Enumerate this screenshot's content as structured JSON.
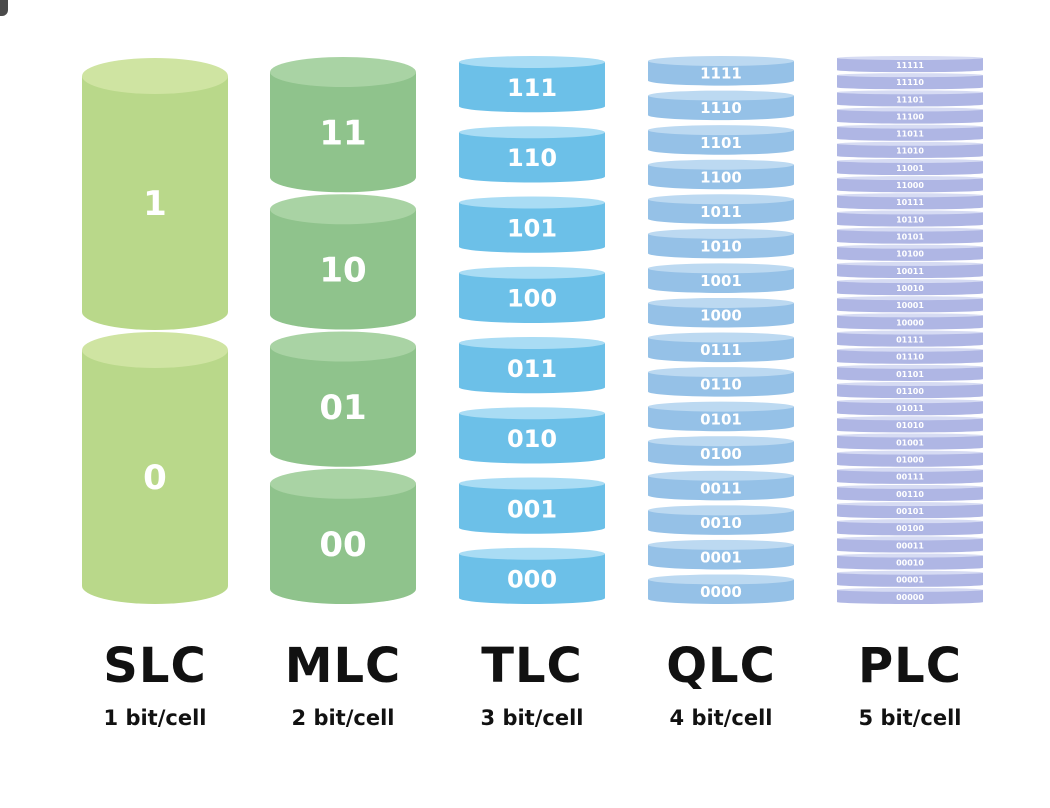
{
  "columns": [
    {
      "id": "slc",
      "type": "SLC",
      "bits": "1 bit/cell",
      "states": [
        "1",
        "0"
      ],
      "colors": {
        "top": "#cfe4a2",
        "body": "#b9d88a",
        "text": "#ffffff"
      }
    },
    {
      "id": "mlc",
      "type": "MLC",
      "bits": "2 bit/cell",
      "states": [
        "11",
        "10",
        "01",
        "00"
      ],
      "colors": {
        "top": "#a9d3a4",
        "body": "#8fc38c",
        "text": "#ffffff"
      }
    },
    {
      "id": "tlc",
      "type": "TLC",
      "bits": "3 bit/cell",
      "states": [
        "111",
        "110",
        "101",
        "100",
        "011",
        "010",
        "001",
        "000"
      ],
      "colors": {
        "top": "#a9dcf4",
        "body": "#6cc0e8",
        "text": "#ffffff"
      }
    },
    {
      "id": "qlc",
      "type": "QLC",
      "bits": "4 bit/cell",
      "states": [
        "1111",
        "1110",
        "1101",
        "1100",
        "1011",
        "1010",
        "1001",
        "1000",
        "0111",
        "0110",
        "0101",
        "0100",
        "0011",
        "0010",
        "0001",
        "0000"
      ],
      "colors": {
        "top": "#bcd9f1",
        "body": "#95c1e7",
        "text": "#ffffff"
      }
    },
    {
      "id": "plc",
      "type": "PLC",
      "bits": "5 bit/cell",
      "states": [
        "11111",
        "11110",
        "11101",
        "11100",
        "11011",
        "11010",
        "11001",
        "11000",
        "10111",
        "10110",
        "10101",
        "10100",
        "10011",
        "10010",
        "10001",
        "10000",
        "01111",
        "01110",
        "01101",
        "01100",
        "01011",
        "01010",
        "01001",
        "01000",
        "00111",
        "00110",
        "00101",
        "00100",
        "00011",
        "00010",
        "00001",
        "00000"
      ],
      "colors": {
        "top": "#d6dbf3",
        "body": "#afb6e4",
        "text": "#ffffff"
      }
    }
  ]
}
